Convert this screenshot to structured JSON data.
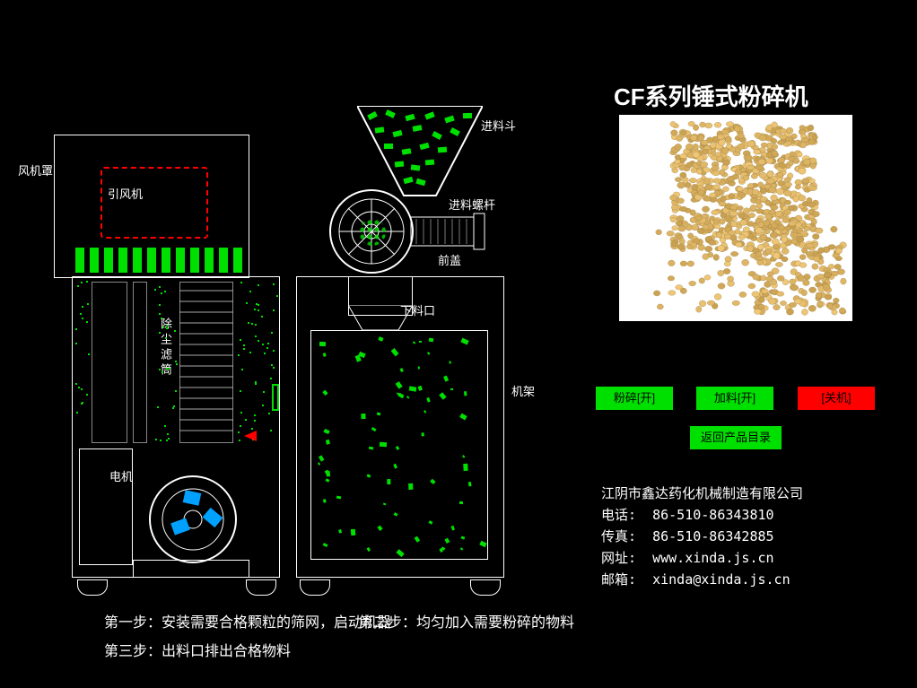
{
  "title": "CF系列锤式粉碎机",
  "labels": {
    "fan_cover": "风机罩",
    "fan": "引风机",
    "dust_filter": "除尘滤筒",
    "motor": "电机",
    "hopper": "进料斗",
    "feed_screw": "进料螺杆",
    "front_cover": "前盖",
    "outlet": "下料口",
    "frame": "机架"
  },
  "buttons": {
    "crush_on": "粉碎[开]",
    "feed_on": "加料[开]",
    "shutdown": "[关机]",
    "back": "返回产品目录"
  },
  "button_colors": {
    "green": "#00e000",
    "red": "#ff0000"
  },
  "contact": {
    "company": "江阴市鑫达药化机械制造有限公司",
    "phone_label": "电话:",
    "phone": "86-510-86343810",
    "fax_label": "传真:",
    "fax": "86-510-86342885",
    "url_label": "网址:",
    "url": "www.xinda.js.cn",
    "email_label": "邮箱:",
    "email": "xinda@xinda.js.cn"
  },
  "steps": {
    "s1": "第一步：安装需要合格颗粒的筛网，启动机器",
    "s2": "第二步：均匀加入需要粉碎的物料",
    "s3": "第三步：出料口排出合格物料"
  },
  "colors": {
    "bg": "#000000",
    "line": "#ffffff",
    "accent_green": "#00e000",
    "accent_red": "#ff0000",
    "accent_cyan": "#00a0ff"
  }
}
